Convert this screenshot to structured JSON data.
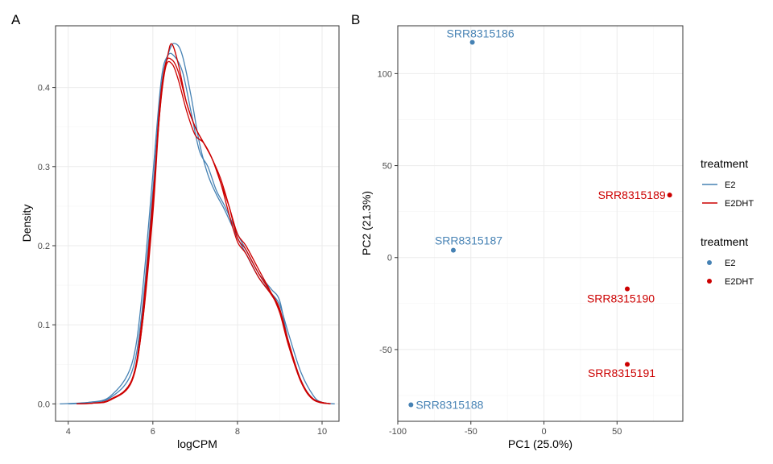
{
  "panels": {
    "left_tag": "A",
    "right_tag": "B"
  },
  "colors": {
    "E2": "#4682B4",
    "E2DHT": "#CC0000",
    "grid_major": "#ebebeb",
    "grid_minor": "#f5f5f5",
    "border": "#333333"
  },
  "chart_data": [
    {
      "type": "line",
      "title": "",
      "xlabel": "logCPM",
      "ylabel": "Density",
      "xlim": [
        3.7,
        10.4
      ],
      "ylim": [
        -0.022,
        0.478
      ],
      "xticks": [
        4,
        6,
        8,
        10
      ],
      "yticks": [
        0.0,
        0.1,
        0.2,
        0.3,
        0.4
      ],
      "xtick_labels": [
        "4",
        "6",
        "8",
        "10"
      ],
      "ytick_labels": [
        "0.0",
        "0.1",
        "0.2",
        "0.3",
        "0.4"
      ],
      "legend_title": "treatment",
      "legend": [
        "E2",
        "E2DHT"
      ],
      "series": [
        {
          "group": "E2",
          "x": [
            3.8,
            4.5,
            5.0,
            5.5,
            5.75,
            6.0,
            6.2,
            6.4,
            6.55,
            6.7,
            6.9,
            7.1,
            7.3,
            7.5,
            7.7,
            8.0,
            8.2,
            8.5,
            8.8,
            9.0,
            9.2,
            9.5,
            9.8,
            10.0,
            10.3
          ],
          "y": [
            0.0,
            0.002,
            0.008,
            0.04,
            0.12,
            0.27,
            0.4,
            0.448,
            0.455,
            0.44,
            0.39,
            0.33,
            0.29,
            0.265,
            0.245,
            0.21,
            0.19,
            0.16,
            0.14,
            0.125,
            0.09,
            0.04,
            0.01,
            0.002,
            0.0
          ]
        },
        {
          "group": "E2",
          "x": [
            4.0,
            4.5,
            5.0,
            5.5,
            5.75,
            6.0,
            6.2,
            6.35,
            6.5,
            6.7,
            6.9,
            7.1,
            7.3,
            7.5,
            7.7,
            8.0,
            8.2,
            8.5,
            8.8,
            9.0,
            9.2,
            9.5,
            9.8,
            10.2
          ],
          "y": [
            0.0,
            0.002,
            0.01,
            0.05,
            0.14,
            0.29,
            0.41,
            0.44,
            0.44,
            0.42,
            0.37,
            0.32,
            0.3,
            0.27,
            0.25,
            0.215,
            0.195,
            0.165,
            0.145,
            0.13,
            0.08,
            0.03,
            0.006,
            0.0
          ]
        },
        {
          "group": "E2DHT",
          "x": [
            4.2,
            4.6,
            5.0,
            5.5,
            5.75,
            6.0,
            6.2,
            6.35,
            6.45,
            6.6,
            6.8,
            7.0,
            7.2,
            7.4,
            7.6,
            7.8,
            8.0,
            8.2,
            8.5,
            8.8,
            9.0,
            9.2,
            9.5,
            9.8,
            10.2
          ],
          "y": [
            0.0,
            0.001,
            0.006,
            0.03,
            0.11,
            0.26,
            0.39,
            0.44,
            0.455,
            0.43,
            0.38,
            0.35,
            0.33,
            0.31,
            0.28,
            0.25,
            0.215,
            0.2,
            0.17,
            0.14,
            0.115,
            0.075,
            0.028,
            0.006,
            0.0
          ]
        },
        {
          "group": "E2DHT",
          "x": [
            4.2,
            4.6,
            5.0,
            5.5,
            5.75,
            6.0,
            6.15,
            6.3,
            6.45,
            6.6,
            6.8,
            7.0,
            7.2,
            7.4,
            7.6,
            7.8,
            8.0,
            8.2,
            8.5,
            8.8,
            9.0,
            9.2,
            9.5,
            9.8,
            10.2
          ],
          "y": [
            0.0,
            0.001,
            0.005,
            0.03,
            0.1,
            0.25,
            0.37,
            0.43,
            0.435,
            0.42,
            0.38,
            0.35,
            0.33,
            0.31,
            0.285,
            0.25,
            0.21,
            0.195,
            0.165,
            0.14,
            0.12,
            0.08,
            0.03,
            0.006,
            0.0
          ]
        },
        {
          "group": "E2DHT",
          "x": [
            4.2,
            4.6,
            5.0,
            5.5,
            5.75,
            6.0,
            6.15,
            6.3,
            6.45,
            6.6,
            6.8,
            7.0,
            7.2,
            7.4,
            7.6,
            7.8,
            8.0,
            8.2,
            8.5,
            8.8,
            9.0,
            9.2,
            9.5,
            9.8,
            10.2
          ],
          "y": [
            0.0,
            0.001,
            0.005,
            0.028,
            0.1,
            0.24,
            0.36,
            0.425,
            0.43,
            0.41,
            0.37,
            0.34,
            0.33,
            0.31,
            0.28,
            0.24,
            0.205,
            0.19,
            0.16,
            0.138,
            0.118,
            0.078,
            0.028,
            0.005,
            0.0
          ]
        }
      ]
    },
    {
      "type": "scatter",
      "title": "",
      "xlabel": "PC1 (25.0%)",
      "ylabel": "PC2 (21.3%)",
      "xlim": [
        -100,
        95
      ],
      "ylim": [
        -89,
        126
      ],
      "xticks": [
        -100,
        -50,
        0,
        50
      ],
      "yticks": [
        -50,
        0,
        50,
        100
      ],
      "xtick_labels": [
        "-100",
        "-50",
        "0",
        "50"
      ],
      "ytick_labels": [
        "-50",
        "0",
        "50",
        "100"
      ],
      "legend_title": "treatment",
      "legend": [
        "E2",
        "E2DHT"
      ],
      "points": [
        {
          "label": "SRR8315186",
          "group": "E2",
          "x": -49,
          "y": 117
        },
        {
          "label": "SRR8315187",
          "group": "E2",
          "x": -62,
          "y": 4
        },
        {
          "label": "SRR8315188",
          "group": "E2",
          "x": -91,
          "y": -80
        },
        {
          "label": "SRR8315189",
          "group": "E2DHT",
          "x": 86,
          "y": 34
        },
        {
          "label": "SRR8315190",
          "group": "E2DHT",
          "x": 57,
          "y": -17
        },
        {
          "label": "SRR8315191",
          "group": "E2DHT",
          "x": 57,
          "y": -58
        }
      ]
    }
  ]
}
